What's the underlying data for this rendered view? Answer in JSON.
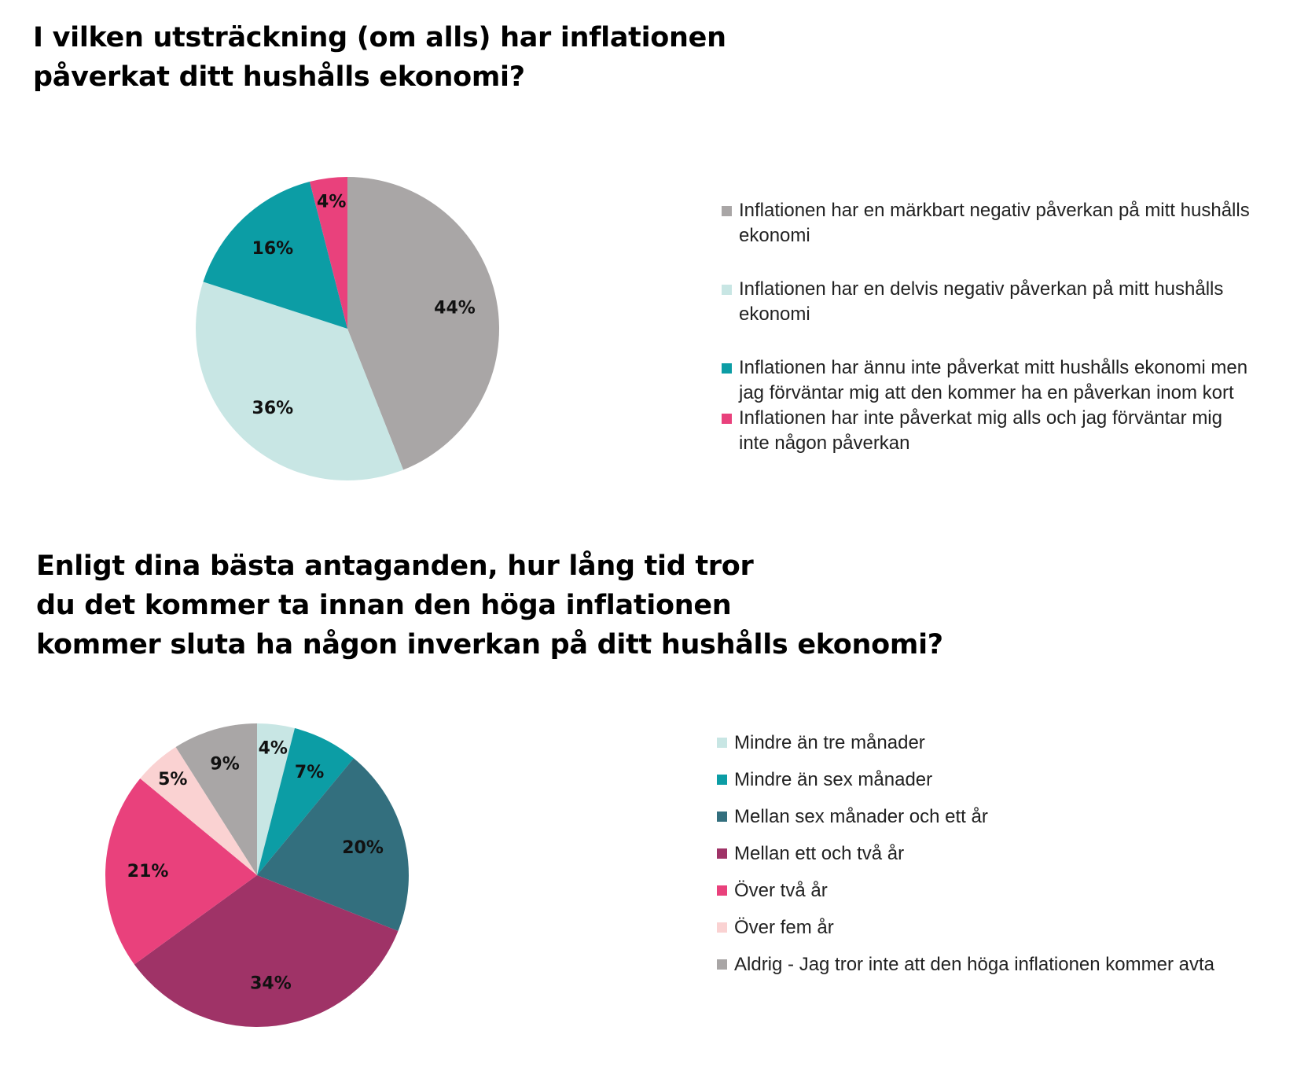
{
  "chart_data": [
    {
      "type": "pie",
      "title": "I vilken utsträckning (om alls) har inflationen påverkat ditt hushålls ekonomi?",
      "title_lines": [
        "I vilken utsträckning (om alls) har inflationen",
        "påverkat ditt hushålls ekonomi?"
      ],
      "slices": [
        {
          "label": "Inflationen har en märkbart negativ påverkan på mitt hushålls ekonomi",
          "value": 44,
          "display": "44%",
          "color": "#a9a6a6"
        },
        {
          "label": "Inflationen har en delvis negativ påverkan på mitt hushålls ekonomi",
          "value": 36,
          "display": "36%",
          "color": "#c8e6e4"
        },
        {
          "label": "Inflationen har ännu inte påverkat mitt hushålls ekonomi men jag förväntar mig att den kommer ha en påverkan inom kort",
          "value": 16,
          "display": "16%",
          "color": "#0c9da5"
        },
        {
          "label": "Inflationen har inte påverkat mig alls och jag förväntar mig inte någon påverkan",
          "value": 4,
          "display": "4%",
          "color": "#e9417c"
        }
      ],
      "legend_position": "right"
    },
    {
      "type": "pie",
      "title": "Enligt dina bästa antaganden, hur lång tid tror du det kommer ta innan den höga inflationen kommer sluta ha någon inverkan på ditt hushålls ekonomi?",
      "title_lines": [
        "Enligt dina bästa antaganden, hur lång tid tror",
        "du det kommer ta innan den höga inflationen",
        "kommer sluta ha någon inverkan på ditt hushålls ekonomi?"
      ],
      "slices": [
        {
          "label": "Mindre än tre månader",
          "value": 4,
          "display": "4%",
          "color": "#c8e6e4"
        },
        {
          "label": "Mindre än sex månader",
          "value": 7,
          "display": "7%",
          "color": "#0c9da5"
        },
        {
          "label": "Mellan sex månader och ett år",
          "value": 20,
          "display": "20%",
          "color": "#336f7e"
        },
        {
          "label": "Mellan ett och två år",
          "value": 34,
          "display": "34%",
          "color": "#9f3367"
        },
        {
          "label": "Över två år",
          "value": 21,
          "display": "21%",
          "color": "#e9417c"
        },
        {
          "label": "Över fem år",
          "value": 5,
          "display": "5%",
          "color": "#fad2d2"
        },
        {
          "label": "Aldrig - Jag tror inte att den höga inflationen kommer avta",
          "value": 9,
          "display": "9%",
          "color": "#a9a6a6"
        }
      ],
      "legend_position": "right"
    }
  ]
}
